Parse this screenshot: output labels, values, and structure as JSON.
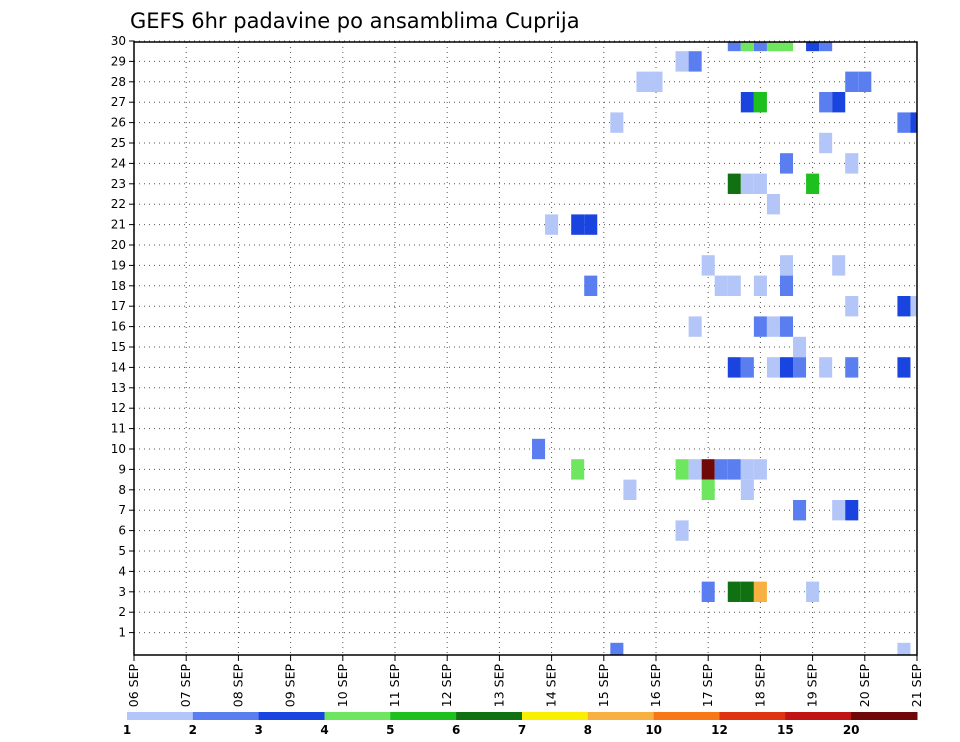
{
  "chart_data": {
    "type": "heatmap",
    "title": "GEFS 6hr padavine po ansamblima Cuprija",
    "xlabel": "",
    "ylabel": "",
    "x_range_days": [
      "06 SEP",
      "21 SEP"
    ],
    "x_tick_labels": [
      "06 SEP",
      "07 SEP",
      "08 SEP",
      "09 SEP",
      "10 SEP",
      "11 SEP",
      "12 SEP",
      "13 SEP",
      "14 SEP",
      "15 SEP",
      "16 SEP",
      "17 SEP",
      "18 SEP",
      "19 SEP",
      "20 SEP",
      "21 SEP"
    ],
    "y_tick_labels": [
      "1",
      "2",
      "3",
      "4",
      "5",
      "6",
      "7",
      "8",
      "9",
      "10",
      "11",
      "12",
      "13",
      "14",
      "15",
      "16",
      "17",
      "18",
      "19",
      "20",
      "21",
      "22",
      "23",
      "24",
      "25",
      "26",
      "27",
      "28",
      "29",
      "30"
    ],
    "grid": true,
    "colorbar": {
      "placement": "bottom",
      "colors": [
        "#b4c6f8",
        "#5a7ef0",
        "#1a44e0",
        "#6ee660",
        "#1ec01e",
        "#117011",
        "#f8f000",
        "#f8b040",
        "#f87818",
        "#e03410",
        "#c01414",
        "#700808"
      ],
      "labels": [
        "1",
        "2",
        "3",
        "4",
        "5",
        "6",
        "7",
        "8",
        "10",
        "12",
        "15",
        "20"
      ],
      "label_positions": [
        0,
        1,
        2,
        3,
        4,
        5,
        6,
        7,
        8,
        9,
        10,
        11
      ]
    },
    "cells": [
      {
        "member": 30,
        "day": 17.5,
        "color_index": 1
      },
      {
        "member": 30,
        "day": 17.75,
        "color_index": 3
      },
      {
        "member": 30,
        "day": 18,
        "color_index": 1
      },
      {
        "member": 30,
        "day": 18.25,
        "color_index": 3
      },
      {
        "member": 30,
        "day": 18.5,
        "color_index": 3
      },
      {
        "member": 30,
        "day": 19,
        "color_index": 2
      },
      {
        "member": 30,
        "day": 19.25,
        "color_index": 1
      },
      {
        "member": 29,
        "day": 16.5,
        "color_index": 0
      },
      {
        "member": 29,
        "day": 16.75,
        "color_index": 1
      },
      {
        "member": 28,
        "day": 15.75,
        "color_index": 0
      },
      {
        "member": 28,
        "day": 16,
        "color_index": 0
      },
      {
        "member": 28,
        "day": 19.75,
        "color_index": 1
      },
      {
        "member": 28,
        "day": 20,
        "color_index": 1
      },
      {
        "member": 27,
        "day": 17.75,
        "color_index": 2
      },
      {
        "member": 27,
        "day": 18,
        "color_index": 4
      },
      {
        "member": 27,
        "day": 19.25,
        "color_index": 1
      },
      {
        "member": 27,
        "day": 19.5,
        "color_index": 2
      },
      {
        "member": 26,
        "day": 15.25,
        "color_index": 0
      },
      {
        "member": 26,
        "day": 20.75,
        "color_index": 1
      },
      {
        "member": 26,
        "day": 21,
        "color_index": 2
      },
      {
        "member": 25,
        "day": 19.25,
        "color_index": 0
      },
      {
        "member": 24,
        "day": 18.5,
        "color_index": 1
      },
      {
        "member": 24,
        "day": 19.75,
        "color_index": 0
      },
      {
        "member": 23,
        "day": 17.5,
        "color_index": 5
      },
      {
        "member": 23,
        "day": 17.75,
        "color_index": 0
      },
      {
        "member": 23,
        "day": 18,
        "color_index": 0
      },
      {
        "member": 23,
        "day": 19,
        "color_index": 4
      },
      {
        "member": 22,
        "day": 18.25,
        "color_index": 0
      },
      {
        "member": 21,
        "day": 14,
        "color_index": 0
      },
      {
        "member": 21,
        "day": 14.5,
        "color_index": 2
      },
      {
        "member": 21,
        "day": 14.75,
        "color_index": 2
      },
      {
        "member": 19,
        "day": 17,
        "color_index": 0
      },
      {
        "member": 19,
        "day": 18.5,
        "color_index": 0
      },
      {
        "member": 19,
        "day": 19.5,
        "color_index": 0
      },
      {
        "member": 18,
        "day": 14.75,
        "color_index": 1
      },
      {
        "member": 18,
        "day": 17.25,
        "color_index": 0
      },
      {
        "member": 18,
        "day": 17.5,
        "color_index": 0
      },
      {
        "member": 18,
        "day": 18,
        "color_index": 0
      },
      {
        "member": 18,
        "day": 18.5,
        "color_index": 1
      },
      {
        "member": 17,
        "day": 19.75,
        "color_index": 0
      },
      {
        "member": 17,
        "day": 20.75,
        "color_index": 2
      },
      {
        "member": 17,
        "day": 21,
        "color_index": 0
      },
      {
        "member": 16,
        "day": 16.75,
        "color_index": 0
      },
      {
        "member": 16,
        "day": 18,
        "color_index": 1
      },
      {
        "member": 16,
        "day": 18.25,
        "color_index": 0
      },
      {
        "member": 16,
        "day": 18.5,
        "color_index": 1
      },
      {
        "member": 15,
        "day": 18.75,
        "color_index": 0
      },
      {
        "member": 14,
        "day": 17.5,
        "color_index": 2
      },
      {
        "member": 14,
        "day": 17.75,
        "color_index": 1
      },
      {
        "member": 14,
        "day": 18.25,
        "color_index": 0
      },
      {
        "member": 14,
        "day": 18.5,
        "color_index": 2
      },
      {
        "member": 14,
        "day": 18.75,
        "color_index": 1
      },
      {
        "member": 14,
        "day": 19.25,
        "color_index": 0
      },
      {
        "member": 14,
        "day": 19.75,
        "color_index": 1
      },
      {
        "member": 14,
        "day": 20.75,
        "color_index": 2
      },
      {
        "member": 10,
        "day": 13.75,
        "color_index": 1
      },
      {
        "member": 9,
        "day": 14.5,
        "color_index": 3
      },
      {
        "member": 9,
        "day": 16.5,
        "color_index": 3
      },
      {
        "member": 9,
        "day": 16.75,
        "color_index": 0
      },
      {
        "member": 9,
        "day": 17,
        "color_index": 11
      },
      {
        "member": 9,
        "day": 17.25,
        "color_index": 1
      },
      {
        "member": 9,
        "day": 17.5,
        "color_index": 1
      },
      {
        "member": 9,
        "day": 17.75,
        "color_index": 0
      },
      {
        "member": 9,
        "day": 18,
        "color_index": 0
      },
      {
        "member": 8,
        "day": 15.5,
        "color_index": 0
      },
      {
        "member": 8,
        "day": 17,
        "color_index": 3
      },
      {
        "member": 8,
        "day": 17.75,
        "color_index": 0
      },
      {
        "member": 7,
        "day": 18.75,
        "color_index": 1
      },
      {
        "member": 7,
        "day": 19.5,
        "color_index": 0
      },
      {
        "member": 7,
        "day": 19.75,
        "color_index": 2
      },
      {
        "member": 6,
        "day": 16.5,
        "color_index": 0
      },
      {
        "member": 3,
        "day": 17,
        "color_index": 1
      },
      {
        "member": 3,
        "day": 17.5,
        "color_index": 5
      },
      {
        "member": 3,
        "day": 17.75,
        "color_index": 5
      },
      {
        "member": 3,
        "day": 18,
        "color_index": 7
      },
      {
        "member": 3,
        "day": 19,
        "color_index": 0
      },
      {
        "member": 0,
        "day": 15.25,
        "color_index": 1
      },
      {
        "member": 0,
        "day": 20.75,
        "color_index": 0
      }
    ]
  }
}
